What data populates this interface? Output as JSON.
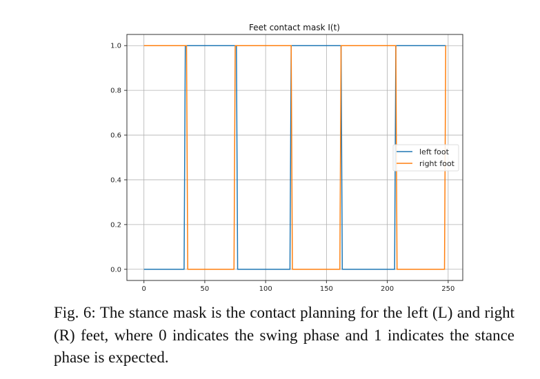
{
  "chart_data": {
    "type": "line",
    "title": "Feet contact mask I(t)",
    "xlabel": "",
    "ylabel": "",
    "xlim": [
      -14,
      262
    ],
    "ylim": [
      -0.05,
      1.05
    ],
    "xticks": [
      0,
      50,
      100,
      150,
      200,
      250
    ],
    "yticks": [
      0.0,
      0.2,
      0.4,
      0.6,
      0.8,
      1.0
    ],
    "xtick_labels": [
      "0",
      "50",
      "100",
      "150",
      "200",
      "250"
    ],
    "ytick_labels": [
      "0.0",
      "0.2",
      "0.4",
      "0.6",
      "0.8",
      "1.0"
    ],
    "grid": true,
    "legend_position": "center-right",
    "series": [
      {
        "name": "left foot",
        "color": "#1f77b4",
        "points": [
          [
            0,
            0
          ],
          [
            33,
            0
          ],
          [
            34,
            1
          ],
          [
            76,
            1
          ],
          [
            77,
            0
          ],
          [
            120,
            0
          ],
          [
            121,
            1
          ],
          [
            162,
            1
          ],
          [
            163,
            0
          ],
          [
            206,
            0
          ],
          [
            207,
            1
          ],
          [
            248,
            1
          ]
        ]
      },
      {
        "name": "right foot",
        "color": "#ff7f0e",
        "points": [
          [
            0,
            1
          ],
          [
            35,
            1
          ],
          [
            36,
            0
          ],
          [
            74,
            0
          ],
          [
            75,
            1
          ],
          [
            121,
            1
          ],
          [
            122,
            0
          ],
          [
            161,
            0
          ],
          [
            162,
            1
          ],
          [
            207,
            1
          ],
          [
            208,
            0
          ],
          [
            247,
            0
          ],
          [
            248,
            1
          ]
        ]
      }
    ]
  },
  "caption": "Fig. 6: The stance mask is the contact planning for the left (L) and right (R) feet, where 0 indicates the swing phase and 1 indicates the stance phase is expected."
}
